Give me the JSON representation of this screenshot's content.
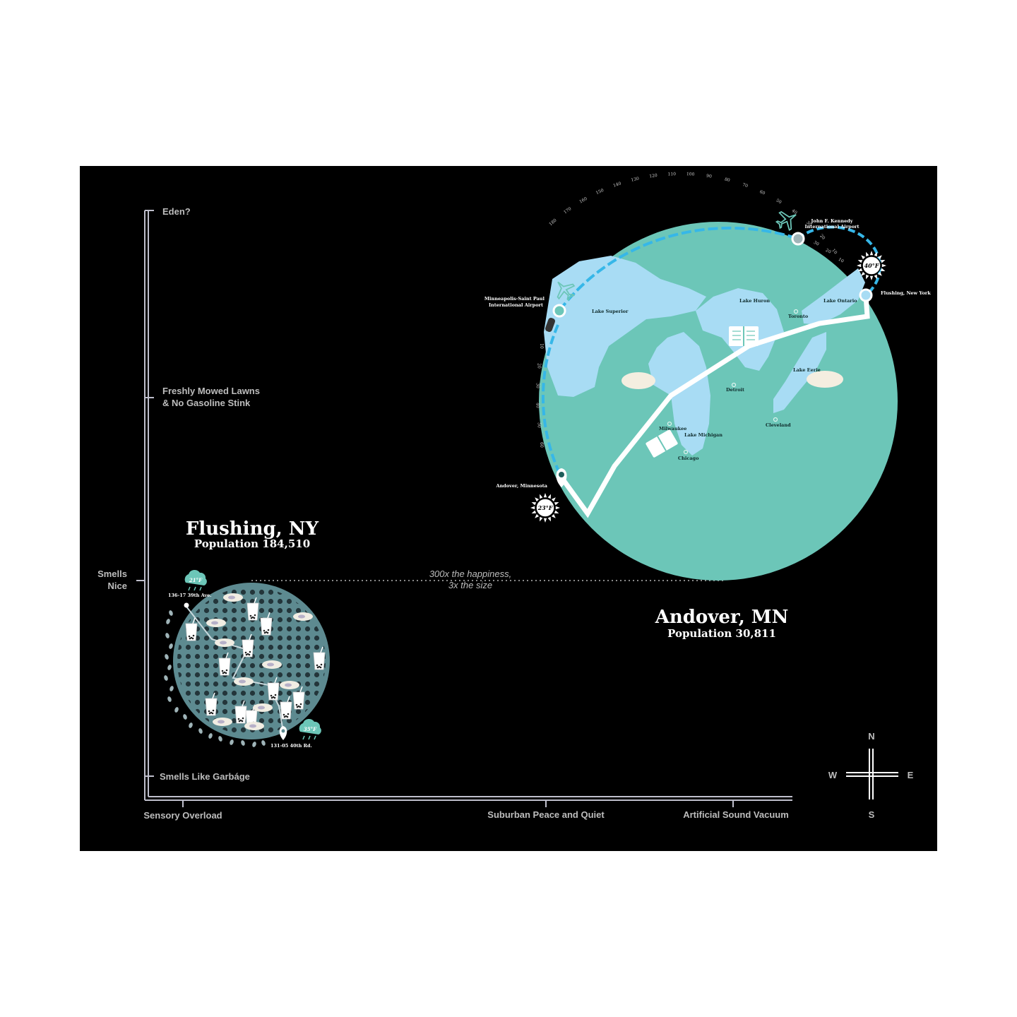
{
  "y_axis": {
    "ticks": [
      {
        "label": "Eden?"
      },
      {
        "label_line1": "Freshly Mowed Lawns",
        "label_line2": "& No Gasoline Stink"
      },
      {
        "label_line1": "Smells",
        "label_line2": "Nice"
      },
      {
        "label": "Smells Like Garbáge"
      }
    ]
  },
  "x_axis": {
    "ticks": [
      {
        "label": "Sensory Overload"
      },
      {
        "label": "Suburban Peace and Quiet"
      },
      {
        "label": "Artificial Sound Vacuum"
      }
    ]
  },
  "flushing": {
    "title": "Flushing, NY",
    "population": "Population 184,510",
    "start_address": "136-17 39th Ave.",
    "end_address": "131-05 40th Rd.",
    "weather_top": "21°F",
    "weather_bottom": "35°F"
  },
  "comparison": {
    "line1": "300x the happiness,",
    "line2": "3x the size"
  },
  "andover": {
    "title": "Andover, MN",
    "population": "Population 30,811",
    "weather_origin": "23°F",
    "weather_dest": "40°F"
  },
  "map": {
    "labels": {
      "msp_line1": "Minneapolis-Saint Paul",
      "msp_line2": "International Airport",
      "jfk_line1": "John F. Kennedy",
      "jfk_line2": "International Airport",
      "flushing_ny": "Flushing, New York",
      "andover_mn": "Andover, Minnesota",
      "lake_superior": "Lake Superior",
      "lake_huron": "Lake Huron",
      "lake_ontario": "Lake Ontario",
      "lake_erie": "Lake Eerie",
      "lake_michigan": "Lake Michigan",
      "toronto": "Toronto",
      "detroit": "Detroit",
      "cleveland": "Cleveland",
      "milwaukee": "Milwaukee",
      "chicago": "Chicago"
    },
    "flight_minutes": [
      "10",
      "20",
      "30",
      "40",
      "50",
      "60",
      "70",
      "80",
      "90",
      "100",
      "110",
      "120",
      "130",
      "140",
      "150",
      "160",
      "170",
      "180"
    ],
    "drive_minutes": [
      "10",
      "20",
      "30",
      "40",
      "50",
      "60"
    ],
    "taxi_minutes": [
      "10",
      "20",
      "30"
    ]
  },
  "compass": {
    "n": "N",
    "s": "S",
    "e": "E",
    "w": "W"
  },
  "colors": {
    "background": "#000000",
    "axis": "#bfbfcc",
    "andover_globe": "#6cc6b8",
    "lakes": "#a8dcf4",
    "flushing_disc": "#5d8a90",
    "flight_dash": "#36b7e8",
    "text_light": "#ffffff",
    "label_grey": "#bdbdbd"
  }
}
